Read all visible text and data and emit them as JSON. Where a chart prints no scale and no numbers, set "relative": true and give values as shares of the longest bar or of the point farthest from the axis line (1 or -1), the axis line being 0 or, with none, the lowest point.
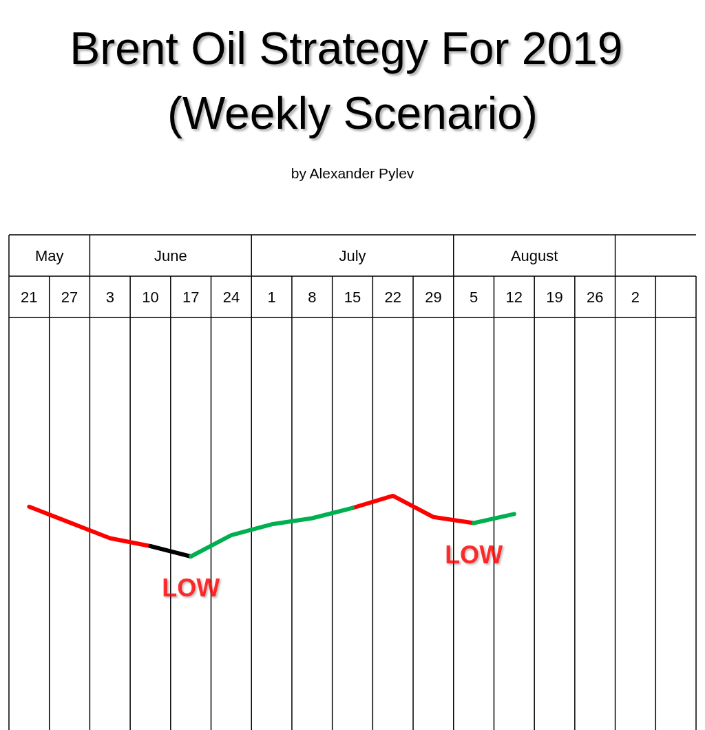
{
  "chart_data": {
    "type": "line",
    "title": "Brent Oil Strategy For 2019 (Weekly Scenario)",
    "subtitle": "by Alexander Pylev",
    "categories": [
      "21",
      "27",
      "3",
      "10",
      "17",
      "24",
      "1",
      "8",
      "15",
      "22",
      "29",
      "5",
      "12",
      "19",
      "26",
      "2",
      null
    ],
    "relative": true,
    "grid": "x",
    "marker": "none",
    "line_style": "solid",
    "series": [
      {
        "color": "#ff0000",
        "values": [
          0.82,
          0.56,
          0.3,
          0.17,
          null,
          null,
          null,
          null,
          0.8,
          1,
          0.65,
          0.55,
          null,
          null,
          null,
          null,
          null
        ]
      },
      {
        "color": "#000000",
        "values": [
          null,
          null,
          null,
          0.17,
          0,
          null,
          null,
          null,
          null,
          null,
          null,
          null,
          null,
          null,
          null,
          null,
          null
        ]
      },
      {
        "color": "#00b050",
        "values": [
          null,
          null,
          null,
          null,
          0,
          0.35,
          0.53,
          0.63,
          0.8,
          null,
          null,
          0.55,
          0.7,
          null,
          null,
          null,
          null
        ]
      }
    ],
    "annotations": [
      "May",
      "June",
      "July",
      "August",
      "LOW",
      "LOW"
    ]
  }
}
